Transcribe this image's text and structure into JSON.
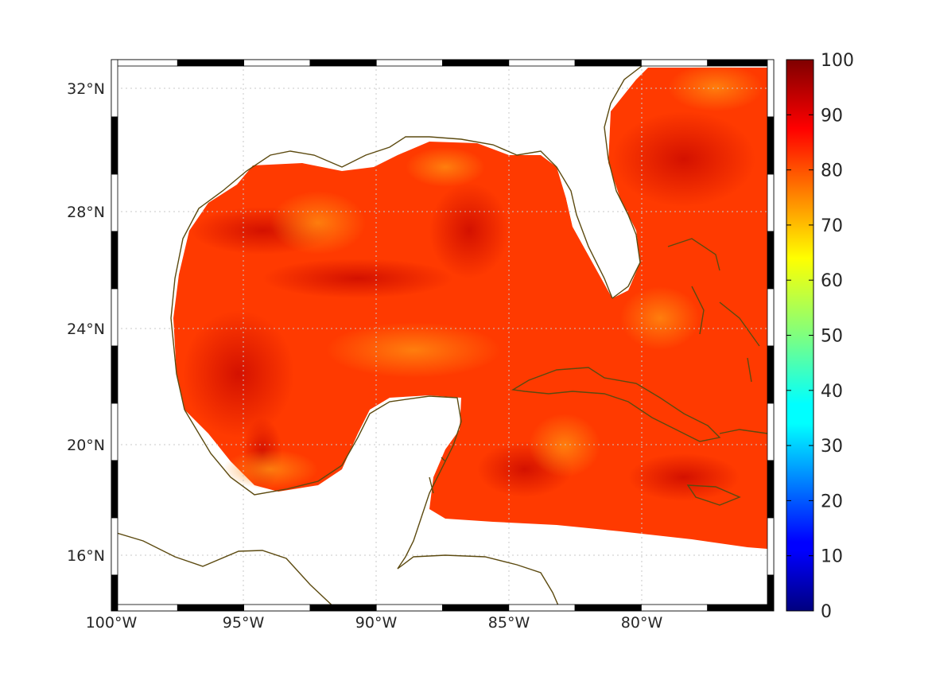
{
  "map": {
    "lon_ticks": [
      "100°W",
      "95°W",
      "90°W",
      "85°W",
      "80°W"
    ],
    "lat_ticks": [
      "32°N",
      "28°N",
      "24°N",
      "20°N",
      "16°N"
    ],
    "lon_range": [
      -100,
      -75
    ],
    "lat_range": [
      14.2,
      33
    ],
    "lon_tick_values": [
      -100,
      -95,
      -90,
      -85,
      -80
    ],
    "lat_tick_values": [
      32,
      28,
      24,
      20,
      16
    ],
    "coastline_color": "#5c4a10",
    "gridlines": true
  },
  "colorbar": {
    "range": [
      0,
      100
    ],
    "ticks": [
      "100",
      "90",
      "80",
      "70",
      "60",
      "50",
      "40",
      "30",
      "20",
      "10",
      "0"
    ],
    "tick_values": [
      100,
      90,
      80,
      70,
      60,
      50,
      40,
      30,
      20,
      10,
      0
    ],
    "colormap": "jet"
  },
  "field": {
    "typical_value_range": [
      75,
      95
    ],
    "dominant_colors": [
      "#ff3300",
      "#ff6600",
      "#ee1100"
    ]
  }
}
